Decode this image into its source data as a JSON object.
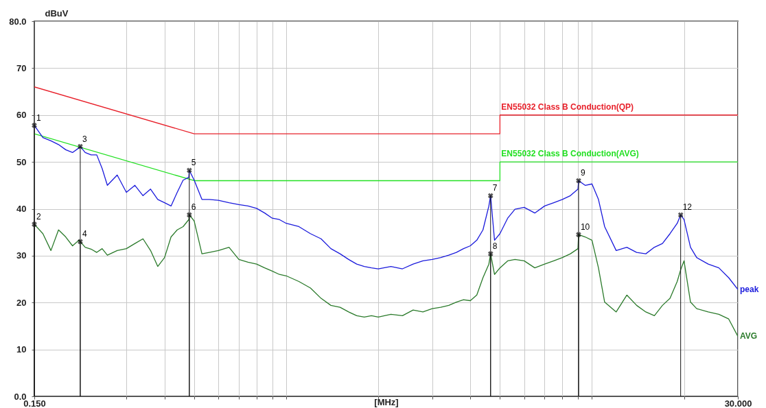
{
  "chart_data": {
    "type": "line",
    "xlabel": "[MHz]",
    "ylabel": "dBuV",
    "log": "x",
    "grid": true,
    "legend": false,
    "xlim": [
      0.15,
      30
    ],
    "ylim": [
      0,
      80
    ],
    "xticks": [
      {
        "value": 0.15,
        "label": "0.150"
      },
      {
        "value": 0.3,
        "label": null
      },
      {
        "value": 0.4,
        "label": null
      },
      {
        "value": 0.5,
        "label": null
      },
      {
        "value": 0.6,
        "label": null
      },
      {
        "value": 0.7,
        "label": null
      },
      {
        "value": 0.8,
        "label": null
      },
      {
        "value": 0.9,
        "label": null
      },
      {
        "value": 1,
        "label": null
      },
      {
        "value": 2,
        "label": null
      },
      {
        "value": 3,
        "label": null
      },
      {
        "value": 4,
        "label": null
      },
      {
        "value": 5,
        "label": null
      },
      {
        "value": 6,
        "label": null
      },
      {
        "value": 7,
        "label": null
      },
      {
        "value": 8,
        "label": null
      },
      {
        "value": 9,
        "label": null
      },
      {
        "value": 10,
        "label": null
      },
      {
        "value": 20,
        "label": null
      },
      {
        "value": 30,
        "label": "30.000"
      }
    ],
    "yticks": [
      {
        "value": 0,
        "label": "0.0"
      },
      10,
      20,
      30,
      40,
      50,
      60,
      70,
      {
        "value": 80,
        "label": "80.0"
      }
    ],
    "series": [
      {
        "name": "EN55032 Class B Conduction(QP)",
        "color": "#e8202a",
        "x": [
          0.15,
          0.5,
          5,
          5,
          30
        ],
        "values": [
          66,
          56,
          56,
          60,
          60
        ]
      },
      {
        "name": "EN55032 Class B Conduction(AVG)",
        "color": "#22e022",
        "x": [
          0.15,
          0.5,
          5,
          5,
          30
        ],
        "values": [
          56,
          46,
          46,
          50,
          50
        ]
      },
      {
        "name": "peak",
        "color": "#1a1adc",
        "x": [
          0.15,
          0.16,
          0.17,
          0.18,
          0.19,
          0.2,
          0.21,
          0.212,
          0.22,
          0.23,
          0.24,
          0.25,
          0.26,
          0.28,
          0.3,
          0.32,
          0.34,
          0.36,
          0.38,
          0.4,
          0.42,
          0.44,
          0.46,
          0.48,
          0.482,
          0.5,
          0.53,
          0.56,
          0.6,
          0.65,
          0.7,
          0.75,
          0.8,
          0.85,
          0.9,
          0.95,
          1,
          1.1,
          1.2,
          1.3,
          1.4,
          1.5,
          1.6,
          1.7,
          1.8,
          1.9,
          2,
          2.2,
          2.4,
          2.6,
          2.8,
          3,
          3.2,
          3.4,
          3.6,
          3.8,
          4,
          4.2,
          4.4,
          4.6,
          4.66,
          4.8,
          5,
          5.3,
          5.6,
          6,
          6.5,
          7,
          7.5,
          8,
          8.5,
          9,
          9.04,
          9.5,
          10,
          10.5,
          11,
          12,
          13,
          14,
          15,
          16,
          17,
          18,
          19,
          19.5,
          20,
          21,
          22,
          24,
          26,
          28,
          30
        ],
        "values": [
          57.8,
          55.2,
          54.5,
          53.7,
          52.6,
          52,
          53,
          53.3,
          52,
          51.5,
          51.5,
          48.6,
          45,
          47.2,
          43.5,
          45,
          42.8,
          44.2,
          42,
          41.3,
          40.6,
          43.5,
          46.1,
          46.7,
          48.2,
          46.1,
          42,
          42,
          41.8,
          41.3,
          40.9,
          40.6,
          40.1,
          39.1,
          38,
          37.7,
          36.9,
          36.2,
          34.7,
          33.6,
          31.5,
          30.4,
          29.2,
          28.2,
          27.7,
          27.4,
          27.2,
          27.7,
          27.2,
          28.2,
          28.9,
          29.2,
          29.6,
          30.1,
          30.7,
          31.5,
          32.1,
          33.3,
          35.5,
          40.6,
          42.8,
          33.3,
          34.7,
          38,
          39.9,
          40.3,
          39.1,
          40.6,
          41.3,
          42,
          42.8,
          44.2,
          46,
          45,
          45.3,
          42,
          36.2,
          31.1,
          31.8,
          30.7,
          30.4,
          31.8,
          32.6,
          34.7,
          36.9,
          38.7,
          37.7,
          31.8,
          29.6,
          28.2,
          27.4,
          25.3,
          22.8
        ]
      },
      {
        "name": "AVG",
        "color": "#2a7a2a",
        "x": [
          0.15,
          0.16,
          0.17,
          0.18,
          0.19,
          0.2,
          0.21,
          0.212,
          0.22,
          0.23,
          0.24,
          0.25,
          0.26,
          0.28,
          0.3,
          0.32,
          0.34,
          0.36,
          0.38,
          0.4,
          0.42,
          0.44,
          0.46,
          0.48,
          0.482,
          0.5,
          0.53,
          0.56,
          0.6,
          0.65,
          0.7,
          0.75,
          0.8,
          0.85,
          0.9,
          0.95,
          1,
          1.1,
          1.2,
          1.3,
          1.4,
          1.5,
          1.6,
          1.7,
          1.8,
          1.9,
          2,
          2.2,
          2.4,
          2.6,
          2.8,
          3,
          3.2,
          3.4,
          3.6,
          3.8,
          4,
          4.2,
          4.4,
          4.6,
          4.66,
          4.8,
          5,
          5.3,
          5.6,
          6,
          6.5,
          7,
          7.5,
          8,
          8.5,
          9,
          9.04,
          9.5,
          10,
          10.5,
          11,
          12,
          13,
          14,
          15,
          16,
          17,
          18,
          19,
          19.5,
          20,
          21,
          22,
          24,
          26,
          28,
          30
        ],
        "values": [
          36.7,
          34.7,
          31.1,
          35.5,
          34,
          32.1,
          33.3,
          33,
          31.8,
          31.4,
          30.7,
          31.5,
          30.1,
          31.1,
          31.5,
          32.6,
          33.6,
          31.1,
          27.7,
          29.6,
          34,
          35.5,
          36.2,
          37.7,
          38.7,
          37.4,
          30.4,
          30.7,
          31.1,
          31.8,
          29.2,
          28.6,
          28.2,
          27.4,
          26.7,
          26,
          25.7,
          24.5,
          23.1,
          20.9,
          19.4,
          19,
          18,
          17.2,
          16.9,
          17.2,
          16.9,
          17.5,
          17.2,
          18.4,
          18,
          18.7,
          19,
          19.4,
          20.1,
          20.6,
          20.4,
          21.6,
          25.3,
          28.2,
          30.4,
          26,
          27.4,
          28.9,
          29.2,
          28.9,
          27.4,
          28.2,
          28.9,
          29.6,
          30.4,
          31.5,
          34.5,
          34,
          33.3,
          27.4,
          20.1,
          18,
          21.6,
          19.4,
          18,
          17.2,
          19.4,
          20.9,
          24.5,
          27,
          28.9,
          20.1,
          18.7,
          18,
          17.5,
          16.5,
          12.8
        ]
      }
    ],
    "annotations": [
      {
        "text": "1",
        "x": 0.15,
        "y": 57.8
      },
      {
        "text": "2",
        "x": 0.15,
        "y": 36.7
      },
      {
        "text": "3",
        "x": 0.212,
        "y": 53.3
      },
      {
        "text": "4",
        "x": 0.212,
        "y": 33
      },
      {
        "text": "5",
        "x": 0.482,
        "y": 48.2
      },
      {
        "text": "6",
        "x": 0.482,
        "y": 38.7
      },
      {
        "text": "7",
        "x": 4.66,
        "y": 42.8
      },
      {
        "text": "8",
        "x": 4.66,
        "y": 30.4
      },
      {
        "text": "9",
        "x": 9.04,
        "y": 46
      },
      {
        "text": "10",
        "x": 9.04,
        "y": 34.5
      },
      {
        "text": "12",
        "x": 19.5,
        "y": 38.7
      }
    ]
  }
}
